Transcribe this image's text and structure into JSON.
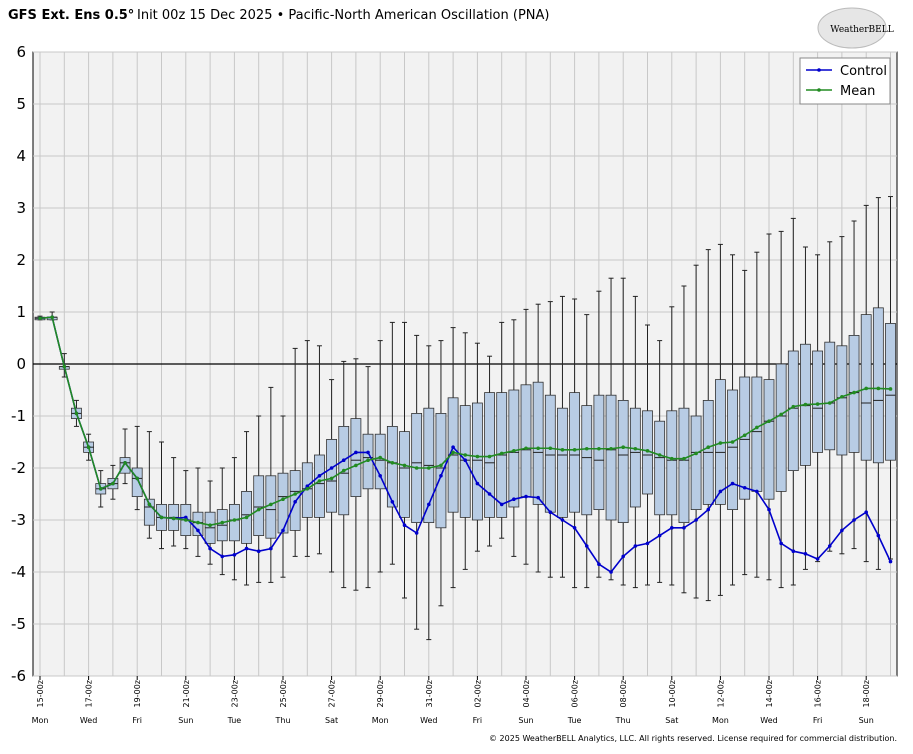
{
  "chart_data": {
    "type": "boxplot",
    "title_bold": "GFS Ext.  Ens 0.5°",
    "title": "Init 00z 15 Dec 2025 • Pacific-North American Oscillation (PNA)",
    "logo": "WeatherBELL",
    "footer": "© 2025 WeatherBELL Analytics, LLC. All rights reserved. License required for commercial distribution.",
    "categories": [
      "15-00z",
      null,
      null,
      null,
      "17-00z",
      null,
      null,
      null,
      "19-00z",
      null,
      null,
      null,
      "21-00z",
      null,
      null,
      null,
      "23-00z",
      null,
      null,
      null,
      "25-00z",
      null,
      null,
      null,
      "27-00z",
      null,
      null,
      null,
      "29-00z",
      null,
      null,
      null,
      "31-00z",
      null,
      null,
      null,
      "02-00z",
      null,
      null,
      null,
      "04-00z",
      null,
      null,
      null,
      "06-00z",
      null,
      null,
      null,
      "08-00z",
      null,
      null,
      null,
      "10-00z",
      null,
      null,
      null,
      "12-00z",
      null,
      null,
      null,
      "14-00z",
      null,
      null,
      null,
      "16-00z",
      null,
      null,
      null,
      "18-00z",
      null,
      null
    ],
    "weekdays": [
      "Mon",
      null,
      null,
      null,
      "Wed",
      null,
      null,
      null,
      "Fri",
      null,
      null,
      null,
      "Sun",
      null,
      null,
      null,
      "Tue",
      null,
      null,
      null,
      "Thu",
      null,
      null,
      null,
      "Sat",
      null,
      null,
      null,
      "Mon",
      null,
      null,
      null,
      "Wed",
      null,
      null,
      null,
      "Fri",
      null,
      null,
      null,
      "Sun",
      null,
      null,
      null,
      "Tue",
      null,
      null,
      null,
      "Thu",
      null,
      null,
      null,
      "Sat",
      null,
      null,
      null,
      "Mon",
      null,
      null,
      null,
      "Wed",
      null,
      null,
      null,
      "Fri",
      null,
      null,
      null,
      "Sun",
      null,
      null
    ],
    "boxes": {
      "color": "#b8cce4",
      "min": [
        0.85,
        0.85,
        -0.25,
        -1.2,
        -1.85,
        -2.75,
        -2.6,
        -2.3,
        -2.8,
        -3.35,
        -3.55,
        -3.5,
        -3.55,
        -3.7,
        -3.85,
        -4.05,
        -4.15,
        -4.25,
        -4.2,
        -4.2,
        -4.1,
        -3.7,
        -3.7,
        -3.65,
        -4.0,
        -4.3,
        -4.35,
        -4.3,
        -4.0,
        -3.85,
        -4.5,
        -5.1,
        -5.3,
        -4.65,
        -4.3,
        -3.95,
        -3.6,
        -3.5,
        -3.35,
        -3.7,
        -3.85,
        -4.0,
        -4.1,
        -4.1,
        -4.3,
        -4.3,
        -4.1,
        -4.15,
        -4.25,
        -4.3,
        -4.25,
        -4.2,
        -4.25,
        -4.4,
        -4.5,
        -4.55,
        -4.45,
        -4.25,
        -4.05,
        -4.1,
        -4.15,
        -4.3,
        -4.25,
        -3.95,
        -3.8,
        -3.6,
        -3.65,
        -3.55,
        -3.8,
        -3.95,
        -3.75
      ],
      "q1": [
        0.85,
        0.85,
        -0.1,
        -1.05,
        -1.7,
        -2.5,
        -2.4,
        -2.1,
        -2.55,
        -3.1,
        -3.2,
        -3.2,
        -3.3,
        -3.3,
        -3.45,
        -3.4,
        -3.4,
        -3.45,
        -3.3,
        -3.35,
        -3.25,
        -3.2,
        -2.95,
        -2.95,
        -2.85,
        -2.9,
        -2.55,
        -2.4,
        -2.4,
        -2.75,
        -2.95,
        -3.05,
        -3.05,
        -3.15,
        -2.85,
        -2.95,
        -3.0,
        -2.95,
        -2.95,
        -2.75,
        -2.55,
        -2.7,
        -2.85,
        -2.95,
        -2.85,
        -2.9,
        -2.8,
        -3.0,
        -3.05,
        -2.75,
        -2.5,
        -2.9,
        -2.9,
        -3.05,
        -2.8,
        -2.7,
        -2.7,
        -2.8,
        -2.6,
        -2.45,
        -2.6,
        -2.45,
        -2.05,
        -1.95,
        -1.7,
        -1.65,
        -1.75,
        -1.7,
        -1.85,
        -1.9,
        -1.85
      ],
      "median": [
        0.88,
        0.9,
        -0.05,
        -0.95,
        -1.6,
        -2.4,
        -2.3,
        -1.9,
        -2.2,
        -2.75,
        -2.95,
        -2.95,
        -3.0,
        -3.05,
        -3.15,
        -3.1,
        -3.0,
        -2.9,
        -2.75,
        -2.8,
        -2.55,
        -2.45,
        -2.4,
        -2.3,
        -2.25,
        -2.1,
        -1.85,
        -1.8,
        -1.85,
        -1.9,
        -2.0,
        -1.9,
        -1.95,
        -2.0,
        -1.75,
        -1.85,
        -1.85,
        -1.9,
        -1.75,
        -1.7,
        -1.65,
        -1.7,
        -1.75,
        -1.75,
        -1.75,
        -1.8,
        -1.85,
        -1.65,
        -1.75,
        -1.7,
        -1.75,
        -1.8,
        -1.85,
        -1.85,
        -1.7,
        -1.7,
        -1.7,
        -1.6,
        -1.45,
        -1.3,
        -1.1,
        -1.0,
        -0.85,
        -0.8,
        -0.85,
        -0.75,
        -0.65,
        -0.55,
        -0.75,
        -0.7,
        -0.6
      ],
      "q3": [
        0.9,
        0.9,
        -0.05,
        -0.85,
        -1.5,
        -2.3,
        -2.2,
        -1.8,
        -2.0,
        -2.6,
        -2.7,
        -2.7,
        -2.7,
        -2.85,
        -2.85,
        -2.8,
        -2.7,
        -2.45,
        -2.15,
        -2.15,
        -2.1,
        -2.05,
        -1.9,
        -1.75,
        -1.45,
        -1.2,
        -1.05,
        -1.35,
        -1.35,
        -1.2,
        -1.3,
        -0.95,
        -0.85,
        -0.95,
        -0.65,
        -0.8,
        -0.75,
        -0.55,
        -0.55,
        -0.5,
        -0.4,
        -0.35,
        -0.6,
        -0.85,
        -0.55,
        -0.8,
        -0.6,
        -0.6,
        -0.7,
        -0.85,
        -0.9,
        -1.1,
        -0.9,
        -0.85,
        -1.0,
        -0.7,
        -0.3,
        -0.5,
        -0.25,
        -0.25,
        -0.3,
        0.0,
        0.25,
        0.38,
        0.25,
        0.42,
        0.35,
        0.55,
        0.95,
        1.08,
        0.78
      ],
      "max": [
        0.92,
        1.0,
        0.2,
        -0.7,
        -1.35,
        -2.05,
        -1.95,
        -1.25,
        -1.2,
        -1.3,
        -1.5,
        -1.8,
        -2.05,
        -2.0,
        -2.25,
        -2.0,
        -1.8,
        -1.3,
        -1.0,
        -0.45,
        -1.0,
        0.3,
        0.45,
        0.35,
        -0.3,
        0.05,
        0.1,
        -0.05,
        0.45,
        0.8,
        0.8,
        0.55,
        0.35,
        0.45,
        0.7,
        0.6,
        0.4,
        0.15,
        0.8,
        0.85,
        1.05,
        1.15,
        1.2,
        1.3,
        1.25,
        0.95,
        1.4,
        1.65,
        1.65,
        1.3,
        0.75,
        0.45,
        1.1,
        1.5,
        1.9,
        2.2,
        2.3,
        2.1,
        1.8,
        2.15,
        2.5,
        2.55,
        2.8,
        2.25,
        2.1,
        2.35,
        2.45,
        2.75,
        3.05,
        3.2,
        3.22
      ]
    },
    "series": [
      {
        "name": "Control",
        "color": "#0000cc",
        "values": [
          0.88,
          0.9,
          -0.05,
          -0.95,
          -1.6,
          -2.4,
          -2.3,
          -1.9,
          -2.2,
          -2.7,
          -2.95,
          -2.97,
          -2.95,
          -3.2,
          -3.55,
          -3.7,
          -3.67,
          -3.55,
          -3.6,
          -3.55,
          -3.2,
          -2.65,
          -2.35,
          -2.15,
          -2.0,
          -1.85,
          -1.7,
          -1.7,
          -2.15,
          -2.65,
          -3.1,
          -3.25,
          -2.7,
          -2.15,
          -1.6,
          -1.85,
          -2.3,
          -2.5,
          -2.7,
          -2.6,
          -2.55,
          -2.57,
          -2.85,
          -3.0,
          -3.15,
          -3.5,
          -3.85,
          -4.0,
          -3.7,
          -3.5,
          -3.45,
          -3.3,
          -3.15,
          -3.15,
          -3.0,
          -2.8,
          -2.45,
          -2.3,
          -2.38,
          -2.45,
          -2.8,
          -3.45,
          -3.6,
          -3.65,
          -3.75,
          -3.5,
          -3.2,
          -3.0,
          -2.85,
          -3.3,
          -3.8
        ]
      },
      {
        "name": "Mean",
        "color": "#228b22",
        "values": [
          0.88,
          0.9,
          -0.05,
          -0.95,
          -1.6,
          -2.4,
          -2.3,
          -1.9,
          -2.2,
          -2.7,
          -2.95,
          -2.97,
          -3.0,
          -3.05,
          -3.1,
          -3.05,
          -3.0,
          -2.95,
          -2.8,
          -2.7,
          -2.6,
          -2.5,
          -2.4,
          -2.25,
          -2.2,
          -2.05,
          -1.95,
          -1.85,
          -1.8,
          -1.9,
          -1.95,
          -2.0,
          -2.0,
          -1.95,
          -1.7,
          -1.75,
          -1.78,
          -1.78,
          -1.72,
          -1.67,
          -1.62,
          -1.62,
          -1.62,
          -1.65,
          -1.65,
          -1.63,
          -1.63,
          -1.63,
          -1.6,
          -1.63,
          -1.67,
          -1.75,
          -1.82,
          -1.82,
          -1.72,
          -1.6,
          -1.52,
          -1.5,
          -1.37,
          -1.22,
          -1.1,
          -0.97,
          -0.82,
          -0.78,
          -0.77,
          -0.75,
          -0.63,
          -0.55,
          -0.47,
          -0.47,
          -0.48
        ]
      }
    ],
    "ylim": [
      -6,
      6
    ],
    "yticks": [
      -6,
      -5,
      -4,
      -3,
      -2,
      -1,
      0,
      1,
      2,
      3,
      4,
      5,
      6
    ],
    "grid": true,
    "legend": "upper right"
  }
}
